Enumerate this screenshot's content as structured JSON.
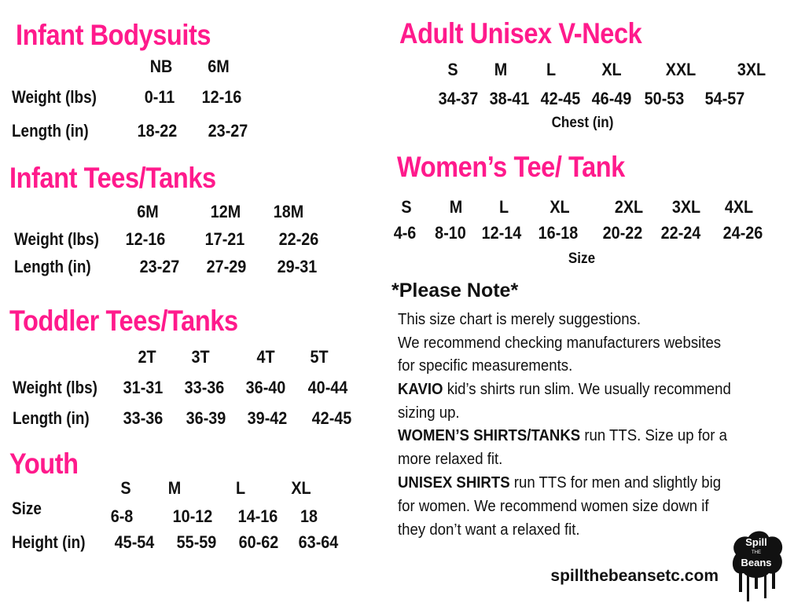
{
  "infant_bodysuits": {
    "title": "Infant Bodysuits",
    "sizes": [
      "NB",
      "6M"
    ],
    "rows": [
      {
        "label": "Weight (lbs)",
        "values": [
          "0-11",
          "12-16"
        ]
      },
      {
        "label": "Length (in)",
        "values": [
          "18-22",
          "23-27"
        ]
      }
    ]
  },
  "infant_tees": {
    "title": "Infant Tees/Tanks",
    "sizes": [
      "6M",
      "12M",
      "18M"
    ],
    "rows": [
      {
        "label": "Weight (lbs)",
        "values": [
          "12-16",
          "17-21",
          "22-26"
        ]
      },
      {
        "label": "Length (in)",
        "values": [
          "23-27",
          "27-29",
          "29-31"
        ]
      }
    ]
  },
  "toddler_tees": {
    "title": "Toddler  Tees/Tanks",
    "sizes": [
      "2T",
      "3T",
      "4T",
      "5T"
    ],
    "rows": [
      {
        "label": "Weight (lbs)",
        "values": [
          "31-31",
          "33-36",
          "36-40",
          "40-44"
        ]
      },
      {
        "label": "Length (in)",
        "values": [
          "33-36",
          "36-39",
          "39-42",
          "42-45"
        ]
      }
    ]
  },
  "youth": {
    "title": "Youth",
    "sizes": [
      "S",
      "M",
      "L",
      "XL"
    ],
    "rows": [
      {
        "label": "Size",
        "values": [
          "6-8",
          "10-12",
          "14-16",
          "18"
        ]
      },
      {
        "label": "Height (in)",
        "values": [
          "45-54",
          "55-59",
          "60-62",
          "63-64"
        ]
      }
    ]
  },
  "adult_unisex": {
    "title": "Adult Unisex V-Neck",
    "sizes": [
      "S",
      "M",
      "L",
      "XL",
      "XXL",
      "3XL"
    ],
    "values": [
      "34-37",
      "38-41",
      "42-45",
      "46-49",
      "50-53",
      "54-57"
    ],
    "measure_label": "Chest (in)"
  },
  "womens": {
    "title": "Women’s Tee/ Tank",
    "sizes": [
      "S",
      "M",
      "L",
      "XL",
      "2XL",
      "3XL",
      "4XL"
    ],
    "values": [
      "4-6",
      "8-10",
      "12-14",
      "16-18",
      "20-22",
      "22-24",
      "24-26"
    ],
    "measure_label": "Size"
  },
  "note": {
    "heading": "*Please Note*",
    "lines": [
      {
        "bold": "",
        "text": "This size chart is merely suggestions."
      },
      {
        "bold": "",
        "text": "We recommend checking manufacturers websites"
      },
      {
        "bold": "",
        "text": "for specific measurements."
      },
      {
        "bold": "KAVIO",
        "text": " kid’s shirts run slim. We usually recommend"
      },
      {
        "bold": "",
        "text": "sizing up."
      },
      {
        "bold": "WOMEN’S SHIRTS/TANKS",
        "text": " run TTS. Size up for a"
      },
      {
        "bold": "",
        "text": "more relaxed fit."
      },
      {
        "bold": "UNISEX SHIRTS",
        "text": " run TTS for men and slightly big"
      },
      {
        "bold": "",
        "text": "for women. We recommend women size down if"
      },
      {
        "bold": "",
        "text": "they don’t want a relaxed fit."
      }
    ]
  },
  "footer": {
    "website": "spillthebeansetc.com",
    "logo_text": "Spill the Beans etc"
  },
  "colors": {
    "heading": "#ff1a8c",
    "text": "#111111"
  }
}
